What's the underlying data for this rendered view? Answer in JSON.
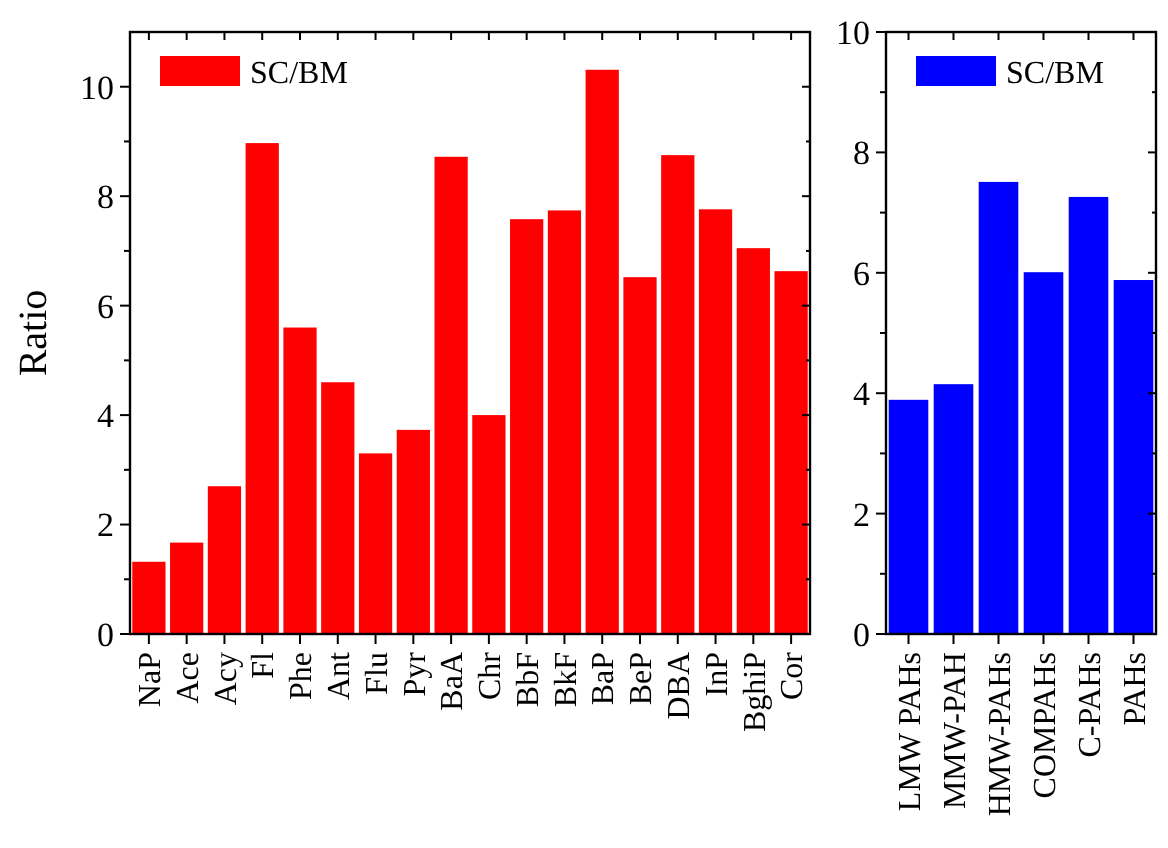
{
  "chart_data": [
    {
      "type": "bar",
      "ylabel": "Ratio",
      "categories": [
        "NaP",
        "Ace",
        "Acy",
        "Fl",
        "Phe",
        "Ant",
        "Flu",
        "Pyr",
        "BaA",
        "Chr",
        "BbF",
        "BkF",
        "BaP",
        "BeP",
        "DBA",
        "InP",
        "BghiP",
        "Cor"
      ],
      "series": [
        {
          "name": "SC/BM",
          "color": "#ff0000",
          "values": [
            1.32,
            1.67,
            2.7,
            8.97,
            5.6,
            4.6,
            3.3,
            3.73,
            8.72,
            4.0,
            7.58,
            7.74,
            10.31,
            6.52,
            8.75,
            7.76,
            7.05,
            6.63
          ]
        }
      ],
      "ylim": [
        0,
        11
      ],
      "yticks": [
        0,
        2,
        4,
        6,
        8,
        10
      ],
      "grid": false,
      "legend": "top left"
    },
    {
      "type": "bar",
      "categories": [
        "LMW PAHs",
        "MMW-PAH",
        "HMW-PAHs",
        "COMPAHs",
        "C-PAHs",
        "PAHs"
      ],
      "series": [
        {
          "name": "SC/BM",
          "color": "#0000ff",
          "values": [
            3.89,
            4.15,
            7.51,
            6.01,
            7.26,
            5.88
          ]
        }
      ],
      "ylim": [
        0,
        10
      ],
      "yticks": [
        0,
        2,
        4,
        6,
        8,
        10
      ],
      "grid": false,
      "legend": "top left"
    }
  ]
}
